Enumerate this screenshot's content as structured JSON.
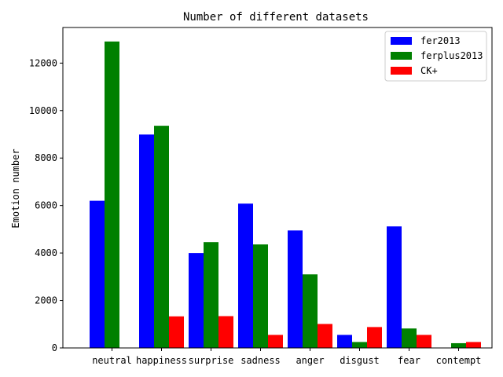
{
  "chart_data": {
    "type": "bar",
    "title": "Number of different datasets",
    "xlabel": "",
    "ylabel": "Emotion number",
    "categories": [
      "neutral",
      "happiness",
      "surprise",
      "sadness",
      "anger",
      "disgust",
      "fear",
      "contempt"
    ],
    "series": [
      {
        "name": "fer2013",
        "color": "#0000ff",
        "values": [
          6200,
          8990,
          4000,
          6080,
          4950,
          550,
          5120,
          0
        ]
      },
      {
        "name": "ferplus2013",
        "color": "#008000",
        "values": [
          12910,
          9360,
          4460,
          4360,
          3100,
          250,
          820,
          200
        ]
      },
      {
        "name": "CK+",
        "color": "#ff0000",
        "values": [
          0,
          1330,
          1340,
          550,
          1010,
          880,
          550,
          250
        ]
      }
    ],
    "yticks": [
      0,
      2000,
      4000,
      6000,
      8000,
      10000,
      12000
    ],
    "ylim": [
      0,
      13500
    ],
    "legend_position": "upper-right",
    "grid": false
  }
}
